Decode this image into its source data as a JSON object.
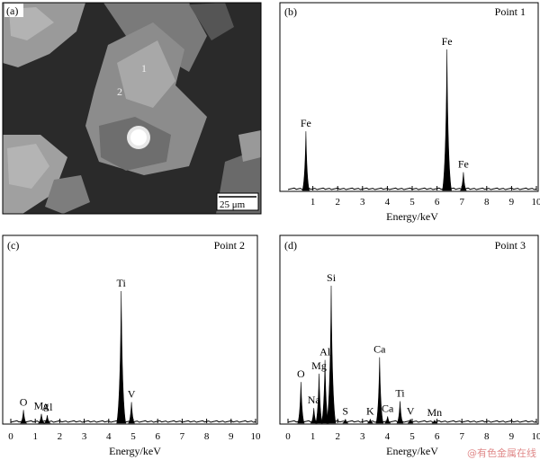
{
  "panel_a": {
    "letter": "(a)",
    "scale_bar": "25 μm",
    "point_labels": [
      "1",
      "2"
    ]
  },
  "chart_data": [
    {
      "type": "bar",
      "panel": "(b)",
      "title": "Point 1",
      "xlabel": "Energy/keV",
      "xlim": [
        0,
        10
      ],
      "xticks": [
        "1",
        "2",
        "3",
        "4",
        "5",
        "6",
        "7",
        "8",
        "9",
        "10"
      ],
      "peaks": [
        {
          "x": 0.72,
          "h": 0.42,
          "label": "Fe"
        },
        {
          "x": 6.4,
          "h": 1.0,
          "label": "Fe"
        },
        {
          "x": 7.06,
          "h": 0.13,
          "label": "Fe"
        }
      ]
    },
    {
      "type": "bar",
      "panel": "(c)",
      "title": "Point 2",
      "xlabel": "Energy/keV",
      "xlim": [
        0,
        10
      ],
      "xticks": [
        "0",
        "1",
        "2",
        "3",
        "4",
        "5",
        "6",
        "7",
        "8",
        "9",
        "10"
      ],
      "peaks": [
        {
          "x": 0.52,
          "h": 0.1,
          "label": "O"
        },
        {
          "x": 1.25,
          "h": 0.07,
          "label": "Mg"
        },
        {
          "x": 1.49,
          "h": 0.06,
          "label": "Al"
        },
        {
          "x": 4.51,
          "h": 1.0,
          "label": "Ti"
        },
        {
          "x": 4.93,
          "h": 0.16,
          "label": "V"
        }
      ]
    },
    {
      "type": "bar",
      "panel": "(d)",
      "title": "Point 3",
      "xlabel": "Energy/keV",
      "xlim": [
        0,
        10
      ],
      "xticks": [
        "0",
        "1",
        "2",
        "3",
        "4",
        "5",
        "6",
        "7",
        "8",
        "9",
        "10"
      ],
      "peaks": [
        {
          "x": 0.52,
          "h": 0.3,
          "label": "O"
        },
        {
          "x": 1.04,
          "h": 0.11,
          "label": "Na"
        },
        {
          "x": 1.25,
          "h": 0.36,
          "label": "Mg"
        },
        {
          "x": 1.49,
          "h": 0.46,
          "label": "Al"
        },
        {
          "x": 1.74,
          "h": 1.0,
          "label": "Si"
        },
        {
          "x": 2.31,
          "h": 0.03,
          "label": "S"
        },
        {
          "x": 3.31,
          "h": 0.03,
          "label": "K"
        },
        {
          "x": 3.69,
          "h": 0.48,
          "label": "Ca"
        },
        {
          "x": 4.01,
          "h": 0.05,
          "label": "Ca"
        },
        {
          "x": 4.51,
          "h": 0.16,
          "label": "Ti"
        },
        {
          "x": 4.93,
          "h": 0.03,
          "label": "V"
        },
        {
          "x": 5.9,
          "h": 0.02,
          "label": "Mn"
        }
      ]
    }
  ],
  "watermark": "@有色金属在线",
  "colors": {
    "plot_fill": "#000000",
    "watermark": "#e08a8a"
  }
}
